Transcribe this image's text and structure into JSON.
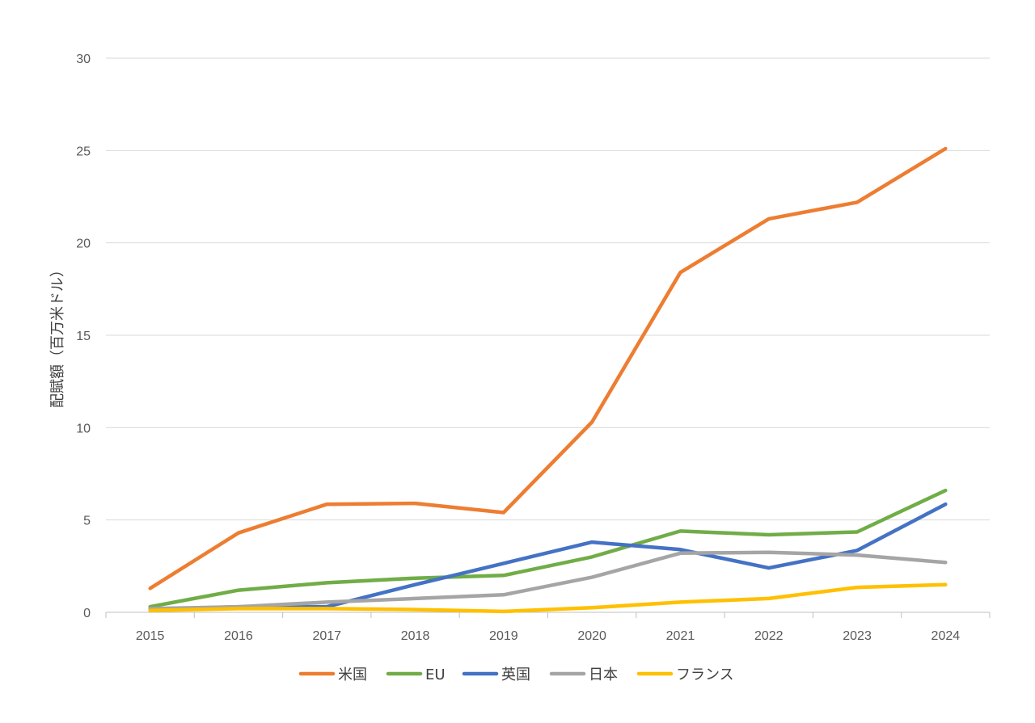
{
  "chart_data": {
    "type": "line",
    "title": "",
    "xlabel": "",
    "ylabel": "配賦額（百万米ドル）",
    "x": [
      "2015",
      "2016",
      "2017",
      "2018",
      "2019",
      "2020",
      "2021",
      "2022",
      "2023",
      "2024"
    ],
    "ylim": [
      0,
      30
    ],
    "yticks": [
      0,
      5,
      10,
      15,
      20,
      25,
      30
    ],
    "grid": true,
    "legend_position": "bottom",
    "series": [
      {
        "name": "米国",
        "color": "#ED7D31",
        "values": [
          1.3,
          4.3,
          5.85,
          5.9,
          5.4,
          10.3,
          18.4,
          21.3,
          22.2,
          25.1
        ]
      },
      {
        "name": "EU",
        "color": "#70AD47",
        "values": [
          0.3,
          1.2,
          1.6,
          1.85,
          2.0,
          3.0,
          4.4,
          4.2,
          4.35,
          6.6
        ]
      },
      {
        "name": "英国",
        "color": "#4472C4",
        "values": [
          0.15,
          0.3,
          0.3,
          1.5,
          2.65,
          3.8,
          3.4,
          2.4,
          3.35,
          5.85
        ]
      },
      {
        "name": "日本",
        "color": "#A5A5A5",
        "values": [
          0.2,
          0.3,
          0.55,
          0.75,
          0.95,
          1.9,
          3.2,
          3.25,
          3.1,
          2.7
        ]
      },
      {
        "name": "フランス",
        "color": "#FFC000",
        "values": [
          0.1,
          0.2,
          0.2,
          0.15,
          0.05,
          0.25,
          0.55,
          0.75,
          1.35,
          1.5
        ]
      }
    ]
  }
}
